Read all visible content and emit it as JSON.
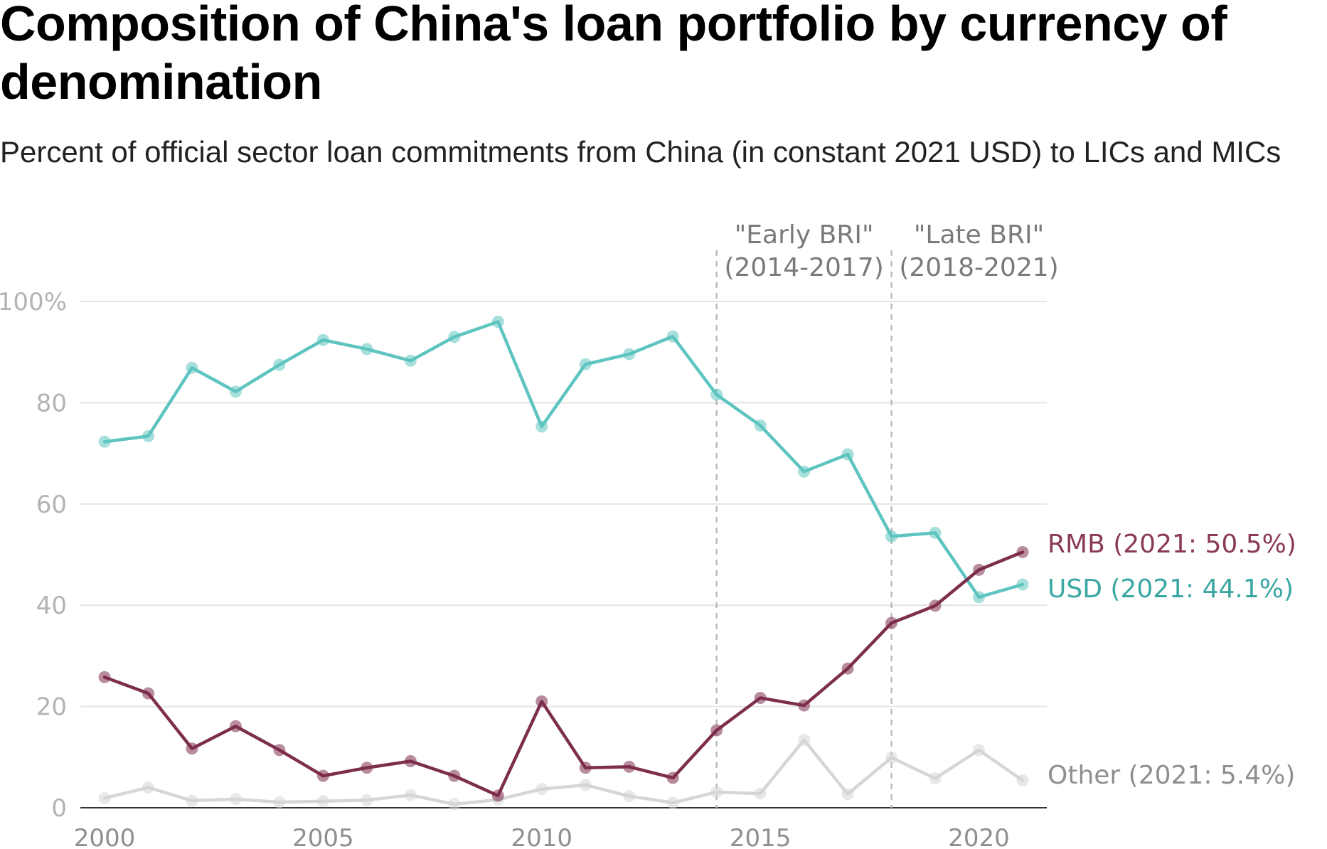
{
  "title": "Composition of China's loan portfolio by currency of denomination",
  "subtitle": "Percent of official sector loan commitments from China (in constant 2021 USD) to LICs and MICs",
  "chart_data": {
    "type": "line",
    "title": "Composition of China's loan portfolio by currency of denomination",
    "subtitle": "Percent of official sector loan commitments from China (in constant 2021 USD) to LICs and MICs",
    "x": [
      2000,
      2001,
      2002,
      2003,
      2004,
      2005,
      2006,
      2007,
      2008,
      2009,
      2010,
      2011,
      2012,
      2013,
      2014,
      2015,
      2016,
      2017,
      2018,
      2019,
      2020,
      2021
    ],
    "xticks": [
      2000,
      2005,
      2010,
      2015,
      2020
    ],
    "xlim": [
      2000,
      2021
    ],
    "yticks": [
      0,
      20,
      40,
      60,
      80,
      100
    ],
    "ytick_labels": [
      "0",
      "20",
      "40",
      "60",
      "80",
      "100%"
    ],
    "ylim": [
      0,
      100
    ],
    "grid": true,
    "series": [
      {
        "name": "USD",
        "label": "USD (2021: 44.1%)",
        "color": "#5ec4c0",
        "label_color": "#3aa7a2",
        "values": [
          72.3,
          73.4,
          86.9,
          82.2,
          87.5,
          92.4,
          90.6,
          88.3,
          93.0,
          96.0,
          75.3,
          87.6,
          89.6,
          93.1,
          81.6,
          75.5,
          66.4,
          69.8,
          53.6,
          54.3,
          41.6,
          44.1
        ]
      },
      {
        "name": "RMB",
        "label": "RMB (2021: 50.5%)",
        "color": "#7d2e4d",
        "label_color": "#8a3a58",
        "values": [
          25.8,
          22.6,
          11.7,
          16.1,
          11.4,
          6.3,
          7.9,
          9.2,
          6.3,
          2.4,
          21.0,
          7.9,
          8.1,
          5.9,
          15.3,
          21.7,
          20.2,
          27.5,
          36.5,
          39.9,
          47.0,
          50.5
        ]
      },
      {
        "name": "Other",
        "label": "Other (2021: 5.4%)",
        "color": "#d6d6d6",
        "label_color": "#8f8f8f",
        "values": [
          1.9,
          4.0,
          1.4,
          1.7,
          1.1,
          1.3,
          1.5,
          2.5,
          0.7,
          1.6,
          3.7,
          4.5,
          2.3,
          1.0,
          3.1,
          2.8,
          13.4,
          2.7,
          9.9,
          5.8,
          11.4,
          5.4
        ]
      }
    ],
    "annotations": [
      {
        "x": 2014,
        "line1": "\"Early BRI\"",
        "line2": "(2014-2017)"
      },
      {
        "x": 2018,
        "line1": "\"Late BRI\"",
        "line2": "(2018-2021)"
      }
    ]
  }
}
